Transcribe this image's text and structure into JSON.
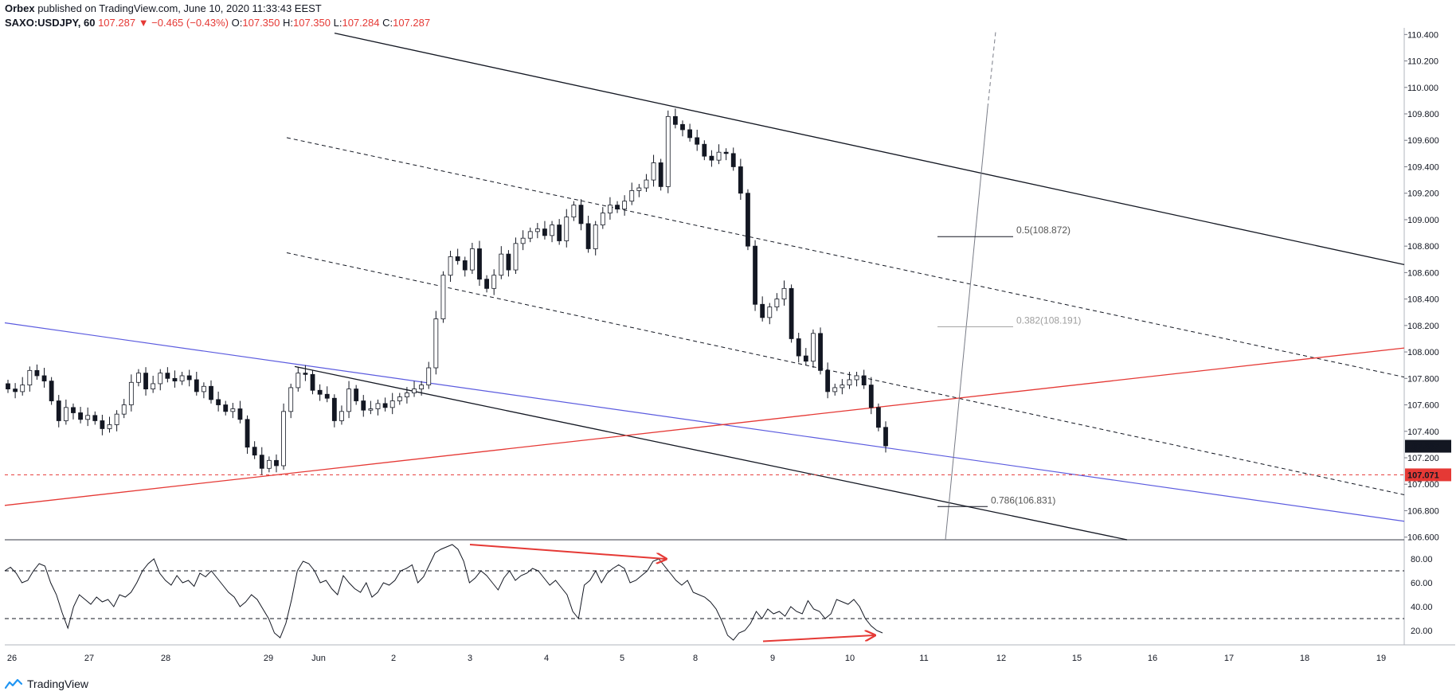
{
  "header": {
    "publisher": "Orbex",
    "published_text": "published on TradingView.com, June 10, 2020 11:33:43 EEST",
    "symbol": "SAXO:USDJPY, 60",
    "last": "107.287",
    "change": "▼ −0.465 (−0.43%)",
    "ohlc": [
      {
        "label": "O:",
        "value": "107.350"
      },
      {
        "label": "H:",
        "value": "107.350"
      },
      {
        "label": "L:",
        "value": "107.284"
      },
      {
        "label": "C:",
        "value": "107.287"
      }
    ]
  },
  "footer": {
    "brand": "TradingView"
  },
  "colors": {
    "candle": "#131722",
    "red_line": "#e53935",
    "blue_line": "#5b5bdf",
    "channel": "#131722",
    "fib_gray": "#9e9e9e",
    "price_tag": "#131722",
    "level_tag": "#e53935"
  },
  "chart_data": [
    {
      "type": "line",
      "title": "",
      "series": [
        {
          "values": [
            107.72,
            107.7,
            107.75,
            107.86,
            107.82,
            107.78,
            107.63,
            107.48,
            107.58,
            107.54,
            107.49,
            107.52,
            107.48,
            107.42,
            107.45,
            107.53,
            107.6,
            107.77,
            107.84,
            107.72,
            107.76,
            107.84,
            107.8,
            107.78,
            107.82,
            107.79,
            107.7,
            107.74,
            107.64,
            107.6,
            107.55,
            107.57,
            107.49,
            107.28,
            107.22,
            107.12,
            107.18,
            107.14,
            107.55,
            107.73,
            107.84,
            107.83,
            107.71,
            107.68,
            107.65,
            107.48,
            107.55,
            107.72,
            107.63,
            107.56,
            107.57,
            107.61,
            107.58,
            107.63,
            107.66,
            107.69,
            107.72,
            107.75,
            107.88,
            108.25,
            108.58,
            108.72,
            108.69,
            108.62,
            108.78,
            108.55,
            108.48,
            108.58,
            108.74,
            108.62,
            108.82,
            108.86,
            108.91,
            108.93,
            108.88,
            108.96,
            108.84,
            109.02,
            109.11,
            108.97,
            108.78,
            108.96,
            109.05,
            109.11,
            109.08,
            109.14,
            109.22,
            109.24,
            109.3,
            109.43,
            109.25,
            109.78,
            109.72,
            109.68,
            109.62,
            109.57,
            109.48,
            109.45,
            109.51,
            109.5,
            109.4,
            109.2,
            108.8,
            108.36,
            108.26,
            108.34,
            108.4,
            108.48,
            108.1,
            107.97,
            107.93,
            108.14,
            107.86,
            107.7,
            107.73,
            107.75,
            107.79,
            107.82,
            107.75,
            107.58,
            107.43,
            107.29
          ]
        }
      ],
      "xlabel": "",
      "ylabel": "",
      "ylim": [
        106.58,
        110.42
      ],
      "y_ticks": [
        "110.400",
        "110.200",
        "110.000",
        "109.800",
        "109.600",
        "109.400",
        "109.200",
        "109.000",
        "108.800",
        "108.600",
        "108.400",
        "108.200",
        "108.000",
        "107.800",
        "107.600",
        "107.400",
        "107.200",
        "107.000",
        "106.800",
        "106.600"
      ],
      "x_ticks": [
        "26",
        "27",
        "28",
        "29",
        "Jun",
        "2",
        "3",
        "4",
        "5",
        "8",
        "9",
        "10",
        "11",
        "12",
        "15",
        "16",
        "17",
        "18",
        "19"
      ],
      "price_labels": [
        {
          "label": "107.287",
          "value": 107.287
        },
        {
          "label": "107.071",
          "value": 107.071
        }
      ],
      "annotations": [
        {
          "label": "0.5(108.872)",
          "value": 108.872
        },
        {
          "label": "0.382(108.191)",
          "value": 108.191
        },
        {
          "label": "0.786(106.831)",
          "value": 106.831
        }
      ]
    },
    {
      "type": "line",
      "title": "",
      "series": [
        {
          "values": [
            70,
            73,
            68,
            60,
            62,
            70,
            76,
            74,
            60,
            50,
            35,
            22,
            40,
            50,
            46,
            42,
            48,
            44,
            46,
            40,
            50,
            48,
            52,
            60,
            70,
            76,
            80,
            68,
            62,
            58,
            66,
            60,
            62,
            57,
            68,
            65,
            70,
            64,
            58,
            52,
            48,
            40,
            44,
            50,
            46,
            38,
            30,
            18,
            14,
            26,
            46,
            70,
            78,
            76,
            70,
            60,
            62,
            55,
            50,
            66,
            60,
            55,
            52,
            60,
            48,
            52,
            60,
            58,
            62,
            70,
            72,
            75,
            60,
            65,
            75,
            85,
            88,
            90,
            92,
            88,
            78,
            60,
            64,
            70,
            66,
            60,
            54,
            64,
            70,
            62,
            66,
            68,
            72,
            70,
            64,
            58,
            62,
            56,
            50,
            36,
            30,
            58,
            62,
            70,
            60,
            68,
            72,
            75,
            72,
            60,
            62,
            66,
            70,
            78,
            80,
            74,
            68,
            62,
            58,
            62,
            52,
            50,
            48,
            44,
            38,
            28,
            16,
            12,
            18,
            20,
            26,
            36,
            30,
            38,
            34,
            36,
            32,
            40,
            36,
            34,
            45,
            38,
            36,
            30,
            34,
            46,
            44,
            42,
            46,
            40,
            30,
            24,
            20,
            18
          ]
        }
      ],
      "xlabel": "",
      "ylabel": "",
      "ylim": [
        8,
        96
      ],
      "y_ticks": [
        "80.00",
        "60.00",
        "40.00",
        "20.00"
      ],
      "levels": [
        70,
        30
      ]
    }
  ]
}
